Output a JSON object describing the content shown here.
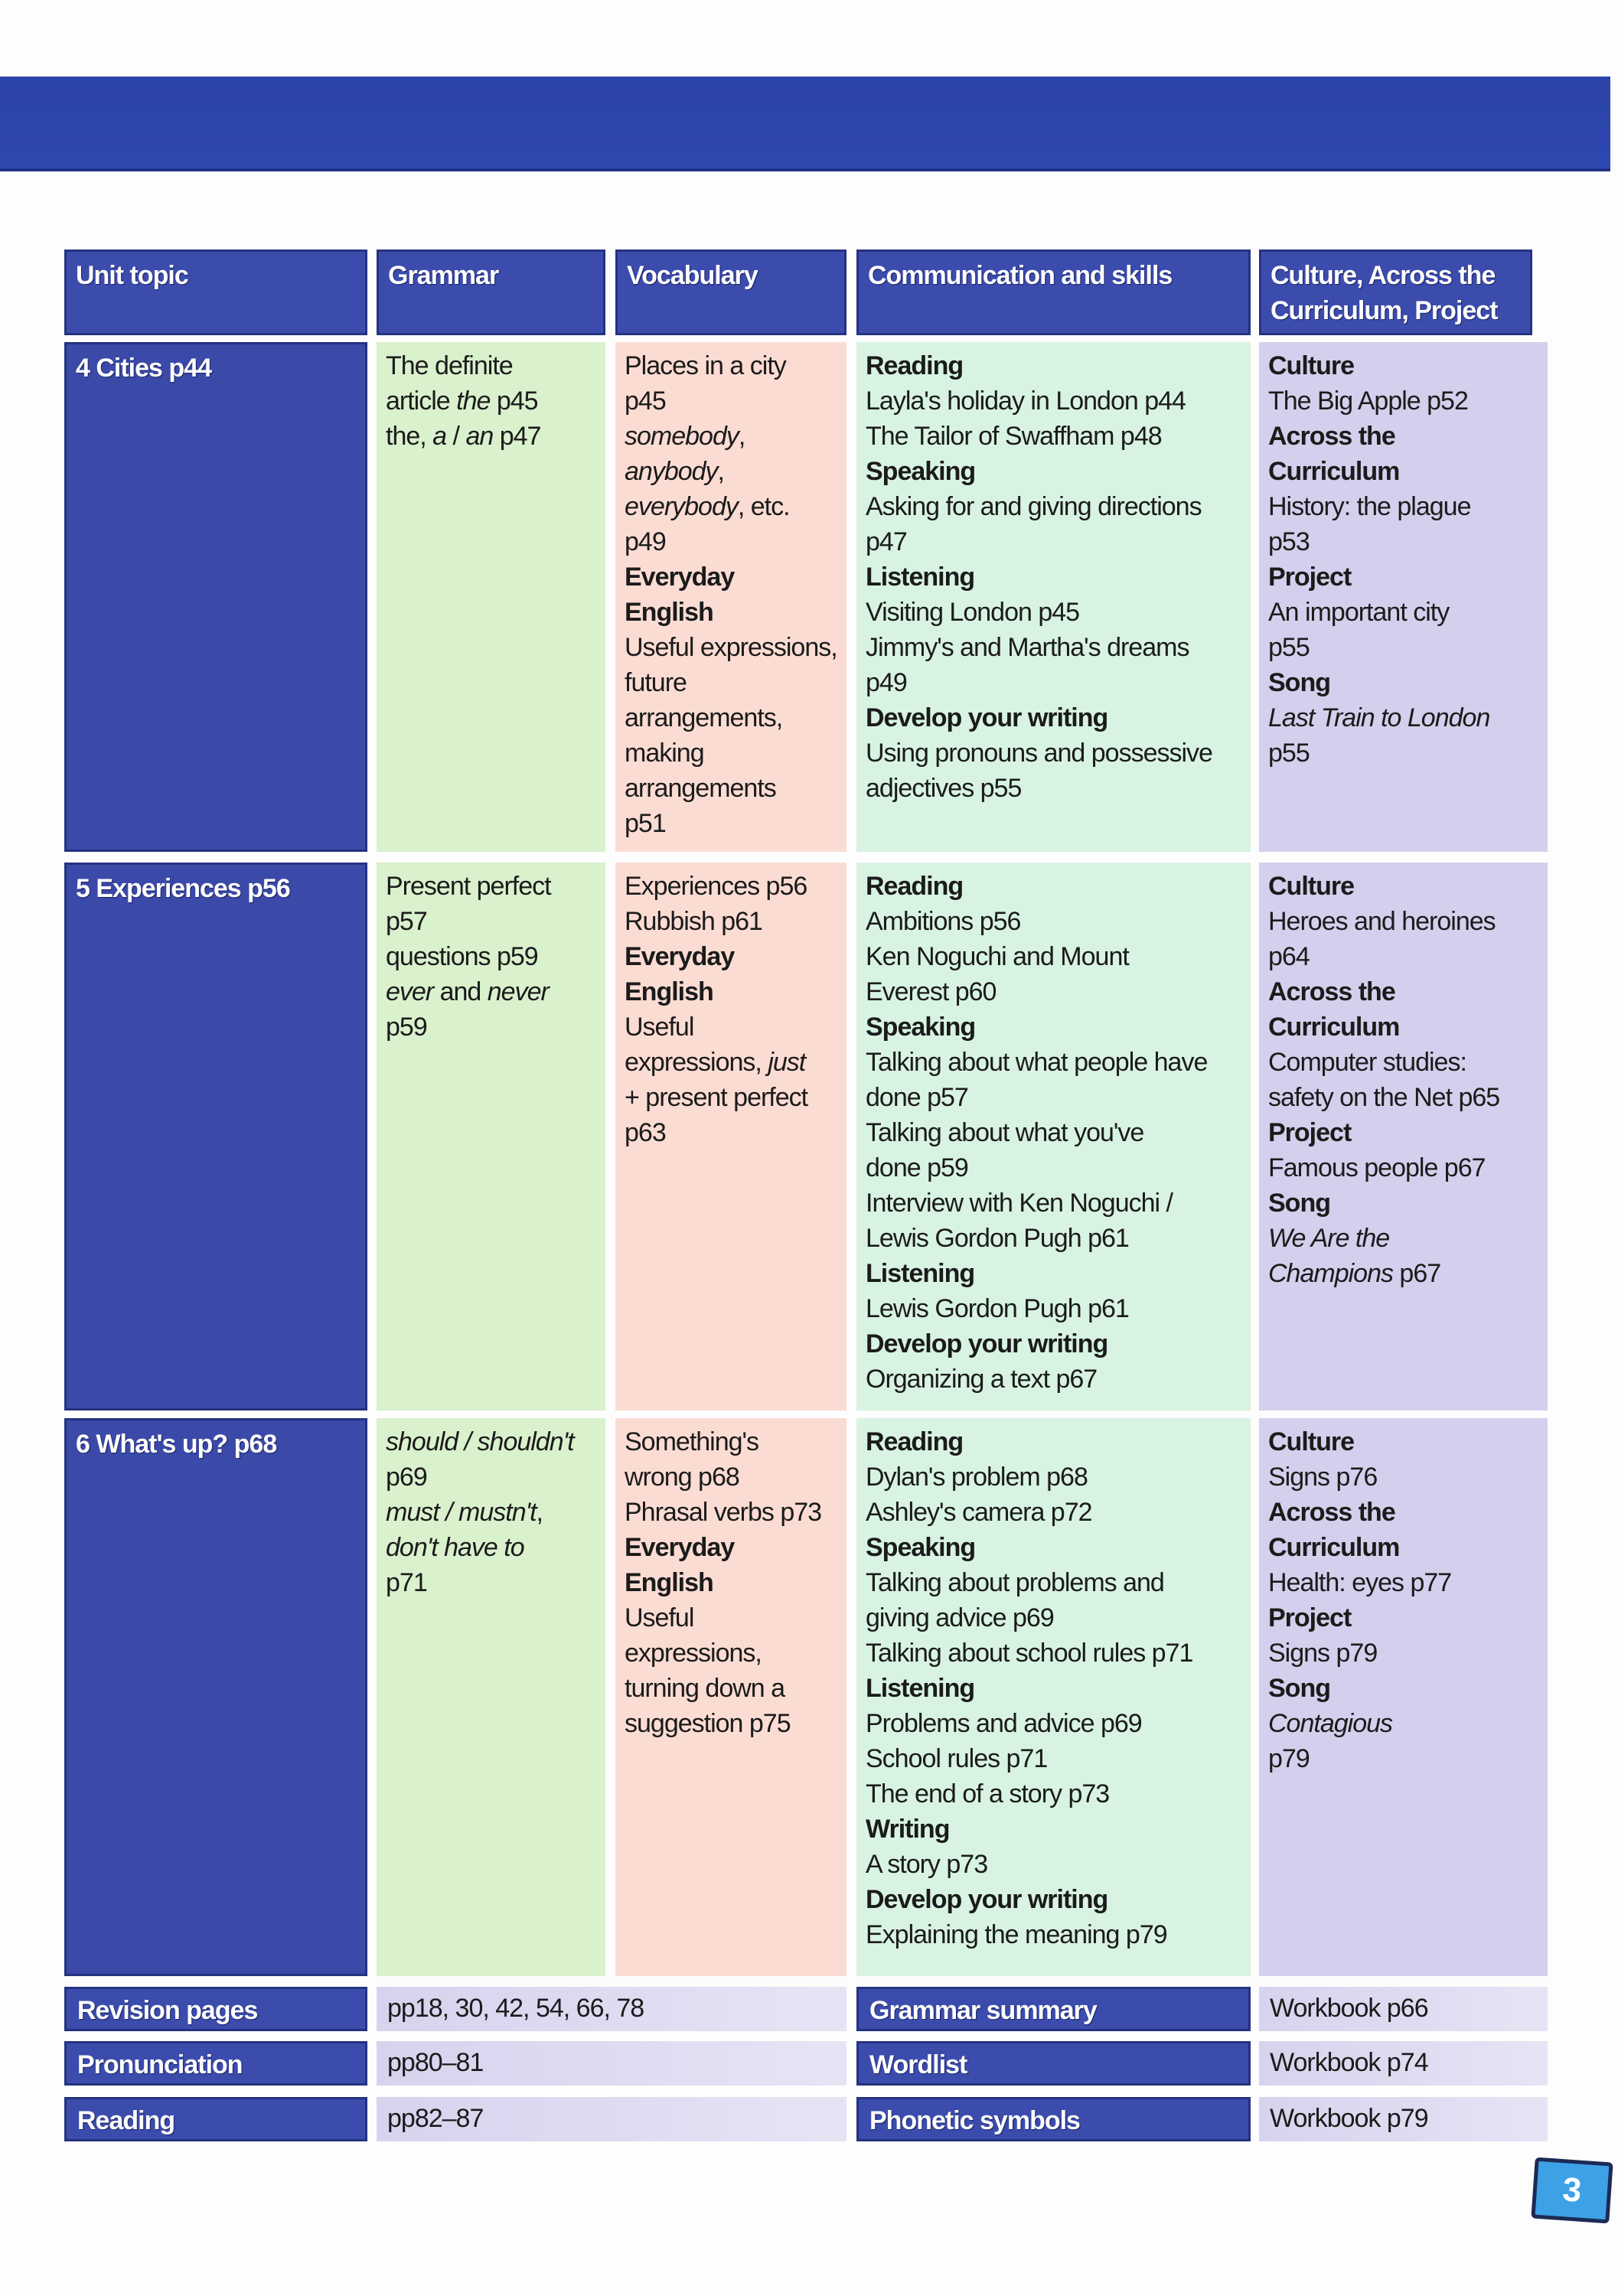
{
  "page_number": "3",
  "headers": [
    "Unit topic",
    "Grammar",
    "Vocabulary",
    "Communication and skills",
    "Culture, Across the Curriculum, Project"
  ],
  "colors": {
    "header_blue": "#3c4cad",
    "grammar": "#d9f1cd",
    "vocabulary": "#fbdcd3",
    "communication": "#d8f3e2",
    "culture": "#d3cfec",
    "page_badge": "#3ea1e6"
  },
  "units": [
    {
      "title": "4  Cities p44",
      "grammar": [
        "The definite",
        [
          [
            "article ",
            ""
          ],
          [
            "the",
            "i"
          ],
          [
            " p45",
            ""
          ]
        ],
        [
          [
            "the",
            ""
          ],
          [
            ", ",
            ""
          ],
          [
            "a",
            "i"
          ],
          [
            " / ",
            ""
          ],
          [
            "an",
            "i"
          ],
          [
            " p47",
            ""
          ]
        ]
      ],
      "vocabulary": [
        "Places in a city",
        "p45",
        [
          [
            "somebody",
            "i"
          ],
          [
            ",",
            ""
          ]
        ],
        [
          [
            "anybody",
            "i"
          ],
          [
            ",",
            ""
          ]
        ],
        [
          [
            "everybody",
            "i"
          ],
          [
            ", etc.",
            ""
          ]
        ],
        "p49",
        [
          [
            "Everyday",
            "b"
          ]
        ],
        [
          [
            "English",
            "b"
          ]
        ],
        "Useful expressions,",
        "future",
        "arrangements,",
        "making",
        "arrangements",
        "p51"
      ],
      "communication": [
        [
          [
            "Reading",
            "b"
          ]
        ],
        "Layla's holiday in London p44",
        "The Tailor of Swaffham p48",
        [
          [
            "Speaking",
            "b"
          ]
        ],
        "Asking for and giving directions",
        "p47",
        [
          [
            "Listening",
            "b"
          ]
        ],
        "Visiting London p45",
        "Jimmy's and Martha's dreams",
        "p49",
        [
          [
            "Develop your writing",
            "b"
          ]
        ],
        "Using pronouns and possessive",
        "adjectives p55"
      ],
      "culture": [
        [
          [
            "Culture",
            "b"
          ]
        ],
        "The Big Apple p52",
        [
          [
            "Across the",
            "b"
          ]
        ],
        [
          [
            "Curriculum",
            "b"
          ]
        ],
        "History: the plague",
        "p53",
        [
          [
            "Project",
            "b"
          ]
        ],
        "An important city",
        "p55",
        [
          [
            "Song",
            "b"
          ]
        ],
        [
          [
            "Last Train to London",
            "i"
          ]
        ],
        "p55"
      ]
    },
    {
      "title": "5  Experiences p56",
      "grammar": [
        "Present perfect",
        "p57",
        "questions p59",
        [
          [
            "ever",
            "i"
          ],
          [
            " and ",
            ""
          ],
          [
            "never",
            "i"
          ]
        ],
        "p59"
      ],
      "vocabulary": [
        "Experiences p56",
        "Rubbish p61",
        [
          [
            "Everyday",
            "b"
          ]
        ],
        [
          [
            "English",
            "b"
          ]
        ],
        "Useful",
        [
          [
            "expressions, ",
            ""
          ],
          [
            "just",
            "i"
          ]
        ],
        "+ present perfect",
        "p63"
      ],
      "communication": [
        [
          [
            "Reading",
            "b"
          ]
        ],
        "Ambitions p56",
        "Ken Noguchi and Mount",
        "Everest p60",
        [
          [
            "Speaking",
            "b"
          ]
        ],
        "Talking about what people have",
        "done p57",
        "Talking about what you've",
        "done p59",
        "Interview with Ken Noguchi /",
        "Lewis Gordon Pugh p61",
        [
          [
            "Listening",
            "b"
          ]
        ],
        "Lewis Gordon Pugh p61",
        [
          [
            "Develop your writing",
            "b"
          ]
        ],
        "Organizing a text p67"
      ],
      "culture": [
        [
          [
            "Culture",
            "b"
          ]
        ],
        "Heroes and heroines",
        "p64",
        [
          [
            "Across the",
            "b"
          ]
        ],
        [
          [
            "Curriculum",
            "b"
          ]
        ],
        "Computer studies:",
        "safety on the Net p65",
        [
          [
            "Project",
            "b"
          ]
        ],
        "Famous people p67",
        [
          [
            "Song",
            "b"
          ]
        ],
        [
          [
            "We Are the",
            "i"
          ]
        ],
        [
          [
            "Champions",
            "i"
          ],
          [
            " p67",
            ""
          ]
        ]
      ]
    },
    {
      "title": "6  What's up? p68",
      "grammar": [
        [
          [
            "should / shouldn't",
            "i"
          ]
        ],
        "p69",
        [
          [
            "must / mustn't",
            "i"
          ],
          [
            ",",
            ""
          ]
        ],
        [
          [
            "don't have to",
            "i"
          ]
        ],
        "p71"
      ],
      "vocabulary": [
        "Something's",
        "wrong p68",
        "Phrasal verbs p73",
        [
          [
            "Everyday",
            "b"
          ]
        ],
        [
          [
            "English",
            "b"
          ]
        ],
        "Useful",
        "expressions,",
        "turning down a",
        "suggestion p75"
      ],
      "communication": [
        [
          [
            "Reading",
            "b"
          ]
        ],
        "Dylan's problem p68",
        "Ashley's camera p72",
        [
          [
            "Speaking",
            "b"
          ]
        ],
        "Talking about problems and",
        "giving advice p69",
        "Talking about school rules p71",
        [
          [
            "Listening",
            "b"
          ]
        ],
        "Problems and advice p69",
        "School rules p71",
        "The end of a story p73",
        [
          [
            "Writing",
            "b"
          ]
        ],
        "A story p73",
        [
          [
            "Develop your writing",
            "b"
          ]
        ],
        "Explaining the meaning p79"
      ],
      "culture": [
        [
          [
            "Culture",
            "b"
          ]
        ],
        "Signs p76",
        [
          [
            "Across the",
            "b"
          ]
        ],
        [
          [
            "Curriculum",
            "b"
          ]
        ],
        "Health: eyes p77",
        [
          [
            "Project",
            "b"
          ]
        ],
        "Signs p79",
        [
          [
            "Song",
            "b"
          ]
        ],
        [
          [
            "Contagious",
            "i"
          ]
        ],
        "p79"
      ]
    }
  ],
  "footer_rows": [
    {
      "label": "Revision pages",
      "value": "pp18, 30, 42, 54, 66, 78",
      "label2": "Grammar summary",
      "value2": "Workbook p66"
    },
    {
      "label": "Pronunciation",
      "value": "pp80–81",
      "label2": "Wordlist",
      "value2": "Workbook p74"
    },
    {
      "label": "Reading",
      "value": "pp82–87",
      "label2": "Phonetic symbols",
      "value2": "Workbook p79"
    }
  ]
}
